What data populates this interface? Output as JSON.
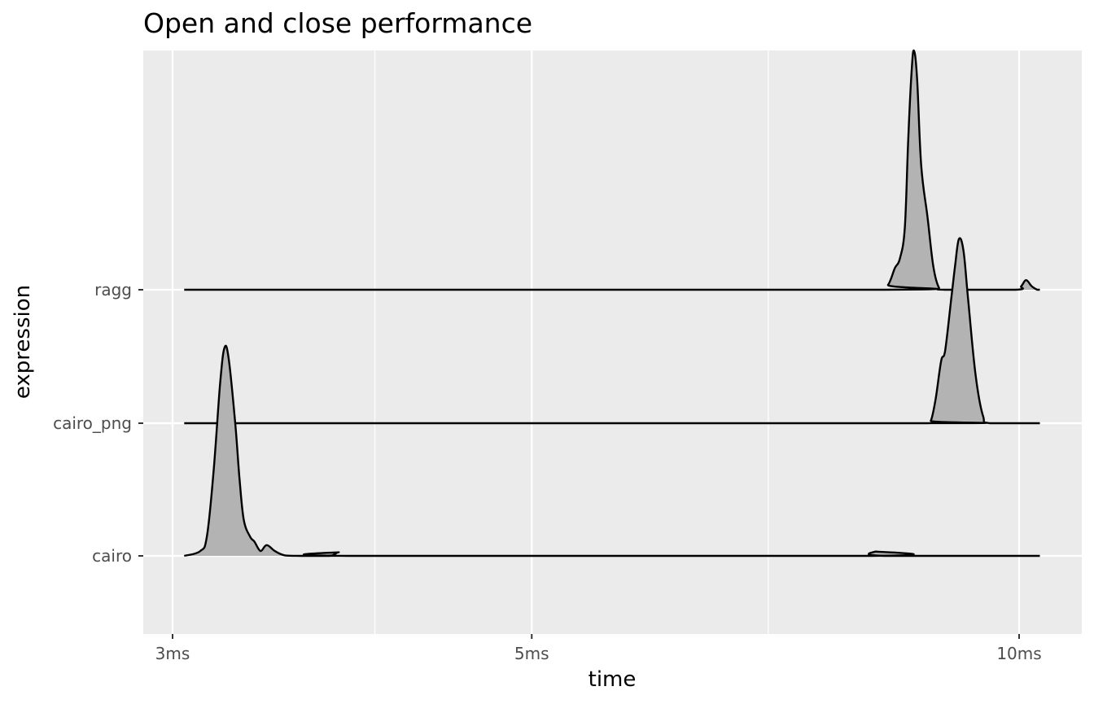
{
  "chart_data": {
    "type": "ridgeline",
    "title": "Open and close performance",
    "xlabel": "time",
    "ylabel": "expression",
    "x_scale": "log10",
    "x_unit": "ms",
    "xlim": [
      2.9,
      10.6
    ],
    "x_ticks": [
      {
        "value": 3,
        "label": "3ms"
      },
      {
        "value": 5,
        "label": "5ms"
      },
      {
        "value": 10,
        "label": "10ms"
      }
    ],
    "x_minor_ticks": [
      4,
      7
    ],
    "categories": [
      "cairo",
      "cairo_png",
      "ragg"
    ],
    "grid": true,
    "panel_background": "#ebebeb",
    "grid_color": "#ffffff",
    "fill_color": "#b3b3b3",
    "line_color": "#000000",
    "density_scale_note": "height relative to the tallest peak",
    "series": [
      {
        "category": "cairo",
        "x_range": [
          3.05,
          10.3
        ],
        "curve": [
          [
            3.05,
            0
          ],
          [
            3.12,
            0.02
          ],
          [
            3.15,
            0.08
          ],
          [
            3.18,
            0.35
          ],
          [
            3.21,
            0.72
          ],
          [
            3.23,
            0.87
          ],
          [
            3.25,
            0.82
          ],
          [
            3.28,
            0.55
          ],
          [
            3.3,
            0.32
          ],
          [
            3.32,
            0.15
          ],
          [
            3.35,
            0.08
          ],
          [
            3.37,
            0.06
          ],
          [
            3.4,
            0.02
          ],
          [
            3.43,
            0.045
          ],
          [
            3.47,
            0.02
          ],
          [
            3.52,
            0.002
          ],
          [
            3.6,
            0
          ],
          [
            3.75,
            0
          ],
          [
            3.8,
            0.015
          ],
          [
            3.85,
            0
          ],
          [
            8.1,
            0
          ],
          [
            8.15,
            0.018
          ],
          [
            8.25,
            0
          ],
          [
            10.3,
            0
          ]
        ]
      },
      {
        "category": "cairo_png",
        "x_range": [
          3.05,
          10.3
        ],
        "curve": [
          [
            3.05,
            0
          ],
          [
            8.75,
            0
          ],
          [
            8.82,
            0.01
          ],
          [
            8.88,
            0.1
          ],
          [
            8.95,
            0.26
          ],
          [
            9.0,
            0.3
          ],
          [
            9.08,
            0.52
          ],
          [
            9.13,
            0.66
          ],
          [
            9.18,
            0.77
          ],
          [
            9.24,
            0.72
          ],
          [
            9.3,
            0.52
          ],
          [
            9.4,
            0.2
          ],
          [
            9.5,
            0.03
          ],
          [
            9.6,
            0
          ],
          [
            10.3,
            0
          ]
        ]
      },
      {
        "category": "ragg",
        "x_range": [
          3.05,
          10.3
        ],
        "curve": [
          [
            3.05,
            0
          ],
          [
            8.2,
            0
          ],
          [
            8.3,
            0.02
          ],
          [
            8.38,
            0.09
          ],
          [
            8.44,
            0.13
          ],
          [
            8.5,
            0.26
          ],
          [
            8.54,
            0.62
          ],
          [
            8.58,
            0.9
          ],
          [
            8.61,
            1.0
          ],
          [
            8.65,
            0.88
          ],
          [
            8.7,
            0.52
          ],
          [
            8.78,
            0.3
          ],
          [
            8.85,
            0.1
          ],
          [
            8.92,
            0.01
          ],
          [
            9.0,
            0
          ],
          [
            9.95,
            0
          ],
          [
            10.03,
            0.015
          ],
          [
            10.1,
            0.04
          ],
          [
            10.18,
            0.015
          ],
          [
            10.26,
            0
          ],
          [
            10.3,
            0
          ]
        ]
      }
    ]
  }
}
